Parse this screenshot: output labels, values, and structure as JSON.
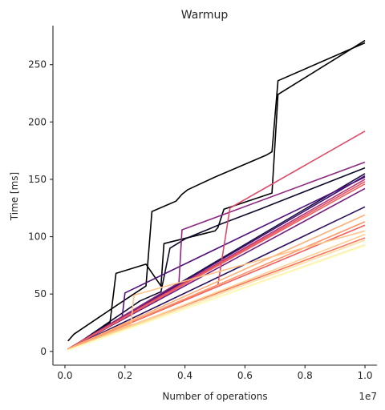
{
  "chart_data": {
    "type": "line",
    "title": "Warmup",
    "xlabel": "Number of operations",
    "ylabel": "Time [ms]",
    "x_offset_label": "1e7",
    "xlim": [
      -0.04,
      1.04
    ],
    "ylim": [
      -12,
      284
    ],
    "x_ticks": [
      0.0,
      0.2,
      0.4,
      0.6,
      0.8,
      1.0
    ],
    "x_tick_labels": [
      "0.0",
      "0.2",
      "0.4",
      "0.6",
      "0.8",
      "1.0"
    ],
    "y_ticks": [
      0,
      50,
      100,
      150,
      200,
      250
    ],
    "y_tick_labels": [
      "0",
      "50",
      "100",
      "150",
      "200",
      "250"
    ],
    "grid": false,
    "legend": "none",
    "series": [
      {
        "color": "#000004",
        "points": [
          [
            0.01,
            9
          ],
          [
            0.03,
            15
          ],
          [
            0.2,
            45
          ],
          [
            0.27,
            57
          ],
          [
            0.29,
            122
          ],
          [
            0.37,
            131
          ],
          [
            0.39,
            137
          ],
          [
            0.41,
            141
          ],
          [
            0.5,
            152
          ],
          [
            0.67,
            171
          ],
          [
            0.69,
            174
          ],
          [
            0.71,
            236
          ],
          [
            1.0,
            269
          ]
        ]
      },
      {
        "color": "#000004",
        "points": [
          [
            0.01,
            1
          ],
          [
            0.15,
            25
          ],
          [
            0.17,
            68
          ],
          [
            0.27,
            76
          ],
          [
            0.32,
            57
          ],
          [
            0.33,
            94
          ],
          [
            0.5,
            105
          ],
          [
            0.51,
            108
          ],
          [
            0.53,
            124
          ],
          [
            0.69,
            138
          ],
          [
            0.71,
            224
          ],
          [
            1.0,
            271
          ]
        ]
      },
      {
        "color": "#0d0829",
        "points": [
          [
            0.01,
            1
          ],
          [
            0.25,
            44
          ],
          [
            0.32,
            52
          ],
          [
            0.35,
            90
          ],
          [
            0.4,
            98
          ],
          [
            0.52,
            111
          ],
          [
            0.65,
            124
          ],
          [
            1.0,
            160
          ]
        ]
      },
      {
        "color": "#1b0c41",
        "points": [
          [
            0.01,
            2
          ],
          [
            1.0,
            155
          ]
        ]
      },
      {
        "color": "#2c115f",
        "points": [
          [
            0.01,
            2
          ],
          [
            1.0,
            126
          ]
        ]
      },
      {
        "color": "#3b0f70",
        "points": [
          [
            0.01,
            2
          ],
          [
            1.0,
            153
          ]
        ]
      },
      {
        "color": "#51127c",
        "points": [
          [
            0.01,
            1
          ],
          [
            0.19,
            28
          ],
          [
            0.2,
            51
          ],
          [
            1.0,
            152
          ]
        ]
      },
      {
        "color": "#721f81",
        "points": [
          [
            0.01,
            2
          ],
          [
            1.0,
            142
          ]
        ]
      },
      {
        "color": "#8c2981",
        "points": [
          [
            0.01,
            2
          ],
          [
            0.38,
            60
          ],
          [
            0.39,
            106
          ],
          [
            1.0,
            165
          ]
        ]
      },
      {
        "color": "#b73779",
        "points": [
          [
            0.01,
            2
          ],
          [
            1.0,
            150
          ]
        ]
      },
      {
        "color": "#de4968",
        "points": [
          [
            0.01,
            2
          ],
          [
            0.51,
            58
          ],
          [
            0.55,
            125
          ],
          [
            1.0,
            192
          ]
        ]
      },
      {
        "color": "#e85362",
        "points": [
          [
            0.01,
            2
          ],
          [
            1.0,
            148
          ]
        ]
      },
      {
        "color": "#f1605d",
        "points": [
          [
            0.01,
            2
          ],
          [
            1.0,
            146
          ]
        ]
      },
      {
        "color": "#f1605d",
        "points": [
          [
            0.01,
            2
          ],
          [
            1.0,
            110
          ]
        ]
      },
      {
        "color": "#f8765c",
        "points": [
          [
            0.01,
            2
          ],
          [
            1.0,
            99
          ]
        ]
      },
      {
        "color": "#fd9567",
        "points": [
          [
            0.01,
            2
          ],
          [
            1.0,
            113
          ]
        ]
      },
      {
        "color": "#feaf77",
        "points": [
          [
            0.01,
            2
          ],
          [
            1.0,
            119
          ]
        ]
      },
      {
        "color": "#fec287",
        "points": [
          [
            0.01,
            1
          ],
          [
            0.22,
            24
          ],
          [
            0.23,
            49
          ],
          [
            1.0,
            105
          ]
        ]
      },
      {
        "color": "#fecf92",
        "points": [
          [
            0.01,
            1
          ],
          [
            1.0,
            102
          ]
        ]
      },
      {
        "color": "#fddea0",
        "points": [
          [
            0.01,
            1
          ],
          [
            1.0,
            97
          ]
        ]
      },
      {
        "color": "#fcebb0",
        "points": [
          [
            0.01,
            1
          ],
          [
            1.0,
            93
          ]
        ]
      },
      {
        "color": "#fcfdbf",
        "points": [
          [
            0.01,
            1
          ],
          [
            1.0,
            92
          ]
        ]
      }
    ]
  }
}
